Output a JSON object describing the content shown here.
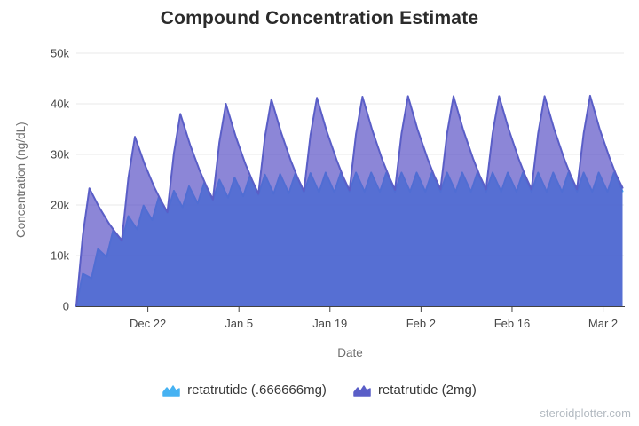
{
  "page": {
    "title": "Compound Concentration Estimate",
    "watermark": "steroidplotter.com"
  },
  "chart_data": {
    "type": "area",
    "title": "Compound Concentration Estimate",
    "xlabel": "Date",
    "ylabel": "Concentration (ng/dL)",
    "grid": true,
    "legend_position": "bottom",
    "ylim": [
      0,
      50000
    ],
    "y_unit": "values below are in thousands of ng/dL",
    "y_ticks": [
      {
        "value": 50,
        "label": "50k"
      },
      {
        "value": 40,
        "label": "40k"
      },
      {
        "value": 30,
        "label": "30k"
      },
      {
        "value": 20,
        "label": "20k"
      },
      {
        "value": 10,
        "label": "10k"
      },
      {
        "value": 0,
        "label": "0"
      }
    ],
    "x_unit": "days since chart start (first dose)",
    "x_span_days": 84.2,
    "x_ticks": [
      {
        "day": 11,
        "label": "Dec 22"
      },
      {
        "day": 25,
        "label": "Jan 5"
      },
      {
        "day": 39,
        "label": "Jan 19"
      },
      {
        "day": 53,
        "label": "Feb 2"
      },
      {
        "day": 67,
        "label": "Feb 16"
      },
      {
        "day": 81,
        "label": "Mar 2"
      }
    ],
    "series": [
      {
        "name": "retatrutide (.666666mg)",
        "color": "#46b2f2",
        "fill": "rgba(60,170,240,0.85)",
        "dosing": "0.666666 mg every 2.33 days, sawtooth peaks ~1 day after each dose",
        "points": [
          [
            0,
            0
          ],
          [
            1,
            6.4
          ],
          [
            2.33,
            5.5
          ],
          [
            3.33,
            11.3
          ],
          [
            4.67,
            9.7
          ],
          [
            5.67,
            15.0
          ],
          [
            7,
            12.8
          ],
          [
            8,
            17.8
          ],
          [
            9.33,
            15.2
          ],
          [
            10.33,
            19.9
          ],
          [
            11.67,
            17.0
          ],
          [
            12.67,
            21.5
          ],
          [
            14,
            18.4
          ],
          [
            15,
            22.8
          ],
          [
            16.33,
            19.5
          ],
          [
            17.33,
            23.7
          ],
          [
            18.67,
            20.3
          ],
          [
            19.67,
            24.4
          ],
          [
            21,
            20.9
          ],
          [
            22,
            25.0
          ],
          [
            23.33,
            21.4
          ],
          [
            24.33,
            25.4
          ],
          [
            25.67,
            21.7
          ],
          [
            26.67,
            25.7
          ],
          [
            28,
            22.0
          ],
          [
            29,
            26.0
          ],
          [
            30.33,
            22.2
          ],
          [
            31.33,
            26.1
          ],
          [
            32.67,
            22.3
          ],
          [
            33.67,
            26.2
          ],
          [
            35,
            22.4
          ],
          [
            36,
            26.3
          ],
          [
            37.33,
            22.5
          ],
          [
            38.33,
            26.4
          ],
          [
            39.67,
            22.5
          ],
          [
            40.67,
            26.4
          ],
          [
            42,
            22.6
          ],
          [
            43,
            26.4
          ],
          [
            44.33,
            22.6
          ],
          [
            45.33,
            26.4
          ],
          [
            46.67,
            22.6
          ],
          [
            47.67,
            26.4
          ],
          [
            49,
            22.6
          ],
          [
            50,
            26.4
          ],
          [
            51.33,
            22.6
          ],
          [
            52.33,
            26.4
          ],
          [
            53.67,
            22.6
          ],
          [
            54.67,
            26.4
          ],
          [
            56,
            22.6
          ],
          [
            57,
            26.4
          ],
          [
            58.33,
            22.6
          ],
          [
            59.33,
            26.4
          ],
          [
            60.67,
            22.6
          ],
          [
            61.67,
            26.4
          ],
          [
            63,
            22.6
          ],
          [
            64,
            26.4
          ],
          [
            65.33,
            22.6
          ],
          [
            66.33,
            26.4
          ],
          [
            67.67,
            22.6
          ],
          [
            68.67,
            26.4
          ],
          [
            70,
            22.6
          ],
          [
            71,
            26.4
          ],
          [
            72.33,
            22.6
          ],
          [
            73.33,
            26.4
          ],
          [
            74.67,
            22.6
          ],
          [
            75.67,
            26.4
          ],
          [
            77,
            22.6
          ],
          [
            78,
            26.4
          ],
          [
            79.33,
            22.6
          ],
          [
            80.33,
            26.4
          ],
          [
            81.67,
            22.6
          ],
          [
            82.67,
            26.4
          ],
          [
            84,
            22.7
          ]
        ]
      },
      {
        "name": "retatrutide (2mg)",
        "color": "#5a5ec7",
        "fill": "rgba(86,76,196,0.68)",
        "dosing": "2 mg every 7 days, sawtooth peaks ~2 days after each dose",
        "points": [
          [
            0,
            0
          ],
          [
            1,
            14.0
          ],
          [
            2,
            23.3
          ],
          [
            3.5,
            19.6
          ],
          [
            5,
            16.4
          ],
          [
            6,
            14.6
          ],
          [
            7,
            13.0
          ],
          [
            8,
            25.3
          ],
          [
            9,
            33.5
          ],
          [
            10.5,
            28.1
          ],
          [
            12,
            23.5
          ],
          [
            13,
            20.9
          ],
          [
            14,
            18.6
          ],
          [
            15,
            30.2
          ],
          [
            16,
            38.0
          ],
          [
            17.5,
            31.9
          ],
          [
            19,
            26.7
          ],
          [
            20,
            23.7
          ],
          [
            21,
            21.1
          ],
          [
            22,
            32.4
          ],
          [
            23,
            40.0
          ],
          [
            24.5,
            33.6
          ],
          [
            26,
            28.1
          ],
          [
            27,
            25.0
          ],
          [
            28,
            22.2
          ],
          [
            29,
            33.4
          ],
          [
            30,
            40.9
          ],
          [
            31.5,
            34.3
          ],
          [
            33,
            28.7
          ],
          [
            34,
            25.5
          ],
          [
            35,
            22.7
          ],
          [
            36,
            33.8
          ],
          [
            37,
            41.2
          ],
          [
            38.5,
            34.6
          ],
          [
            40,
            29.0
          ],
          [
            41,
            25.7
          ],
          [
            42,
            22.9
          ],
          [
            43,
            34.0
          ],
          [
            44,
            41.4
          ],
          [
            45.5,
            34.8
          ],
          [
            47,
            29.1
          ],
          [
            48,
            25.9
          ],
          [
            49,
            23.0
          ],
          [
            50,
            34.1
          ],
          [
            51,
            41.5
          ],
          [
            52.5,
            34.8
          ],
          [
            54,
            29.2
          ],
          [
            55,
            25.9
          ],
          [
            56,
            23.1
          ],
          [
            57,
            34.1
          ],
          [
            58,
            41.5
          ],
          [
            59.5,
            34.8
          ],
          [
            61,
            29.2
          ],
          [
            62,
            25.9
          ],
          [
            63,
            23.1
          ],
          [
            64,
            34.1
          ],
          [
            65,
            41.5
          ],
          [
            66.5,
            34.9
          ],
          [
            68,
            29.2
          ],
          [
            69,
            25.9
          ],
          [
            70,
            23.1
          ],
          [
            71,
            34.1
          ],
          [
            72,
            41.5
          ],
          [
            73.5,
            34.9
          ],
          [
            75,
            29.2
          ],
          [
            76,
            25.9
          ],
          [
            77,
            23.1
          ],
          [
            78,
            34.1
          ],
          [
            79,
            41.6
          ],
          [
            80.5,
            34.9
          ],
          [
            82,
            29.3
          ],
          [
            83,
            26.0
          ],
          [
            84,
            23.4
          ]
        ]
      }
    ]
  }
}
